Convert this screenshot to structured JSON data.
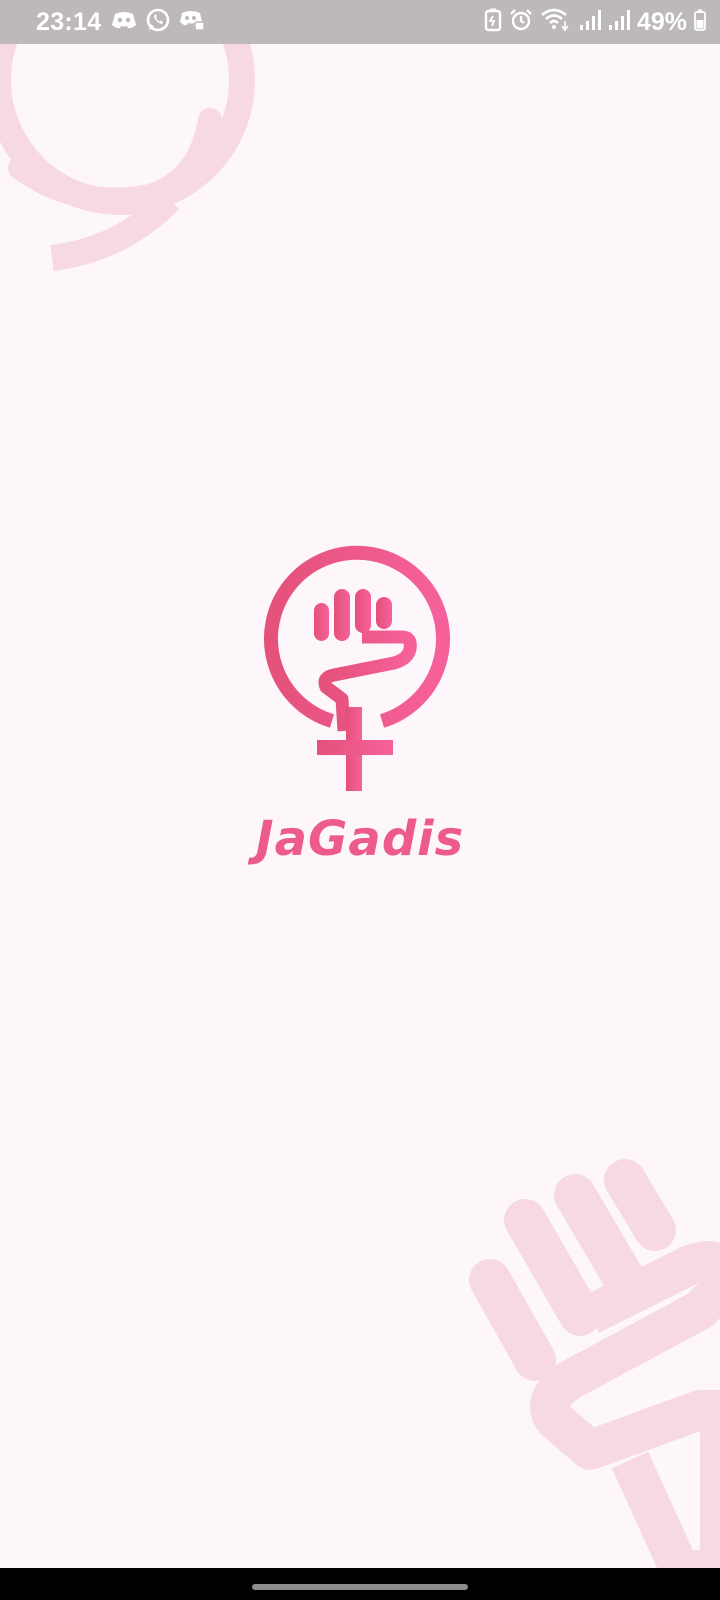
{
  "status_bar": {
    "time": "23:14",
    "battery_percent": "49%",
    "left_icons": [
      "discord-icon",
      "whatsapp-icon",
      "discord-icon"
    ],
    "right_icons": [
      "battery-saver-icon",
      "alarm-icon",
      "wifi-icon",
      "signal-icon",
      "signal-icon",
      "battery-icon"
    ]
  },
  "app": {
    "name": "JaGadis"
  },
  "colors": {
    "brand_pink": "#ed5a8e",
    "brand_pink_dark": "#e4517a",
    "deco_pink": "#f7d9e6",
    "background": "#fdf7fb",
    "status_bar_bg": "#bdb8b9"
  }
}
